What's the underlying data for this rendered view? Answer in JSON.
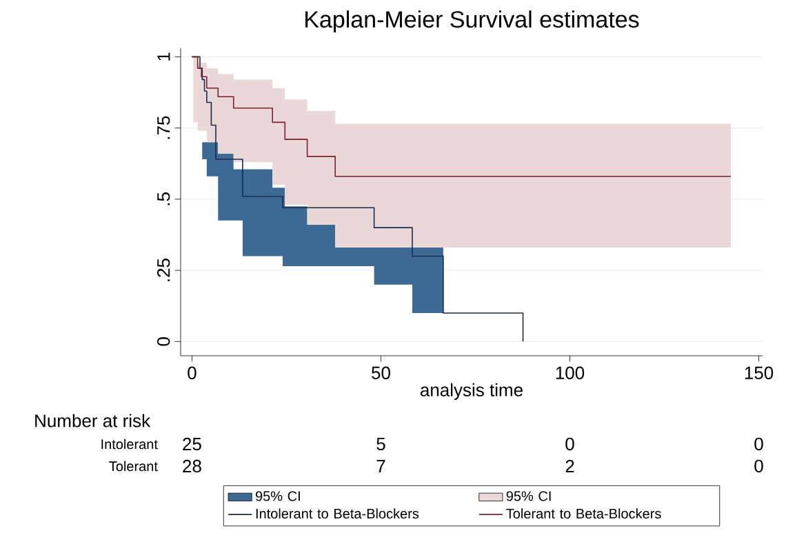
{
  "chart_data": {
    "type": "step",
    "title": "Kaplan-Meier Survival estimates",
    "xlabel": "analysis time",
    "series": [
      {
        "name": "95% CI",
        "type": "area",
        "color": "#3d6a95",
        "x": [
          2.7,
          3.9,
          6.9,
          11,
          13.4,
          21.3,
          24,
          24.6,
          30.5,
          37.9,
          48.2,
          58.3,
          66.5
        ],
        "values": [
          null,
          null,
          null,
          null,
          null,
          null,
          null,
          null,
          null,
          null,
          null,
          null,
          null
        ],
        "upper": [
          0.7,
          0.7,
          0.66,
          0.605,
          0.605,
          0.54,
          0.54,
          0.475,
          0.41,
          0.33,
          0.33,
          0.33,
          0.33
        ],
        "lower": [
          0.64,
          0.58,
          0.425,
          0.425,
          0.3,
          0.3,
          0.265,
          0.265,
          0.265,
          0.265,
          0.2,
          0.1,
          0.1
        ]
      },
      {
        "name": "95% CI",
        "type": "area",
        "color": "#ead8d8",
        "x": [
          0.35,
          1.5,
          3.9,
          6.9,
          11,
          21.3,
          24.6,
          30.5,
          37.9,
          142.6
        ],
        "values": [
          null,
          null,
          null,
          null,
          null,
          null,
          null,
          null,
          null,
          null
        ],
        "upper": [
          1,
          0.98,
          0.96,
          0.94,
          0.92,
          0.89,
          0.85,
          0.81,
          0.765,
          0.765
        ],
        "lower": [
          0.77,
          0.74,
          0.7,
          0.66,
          0.63,
          0.55,
          0.48,
          0.41,
          0.33,
          0.33
        ]
      },
      {
        "name": "Intolerant to Beta-Blockers",
        "type": "step",
        "color": "#1c2b4c",
        "x": [
          0,
          2.1,
          2.7,
          3.3,
          3.9,
          5.1,
          6.3,
          13.4,
          24,
          48.2,
          58.3,
          66.5,
          87.6
        ],
        "values": [
          1,
          0.96,
          0.92,
          0.88,
          0.84,
          0.76,
          0.64,
          0.51,
          0.47,
          0.4,
          0.3,
          0.1,
          0
        ]
      },
      {
        "name": "Tolerant to Beta-Blockers",
        "type": "step",
        "color": "#7a1f2e",
        "x": [
          0,
          1.5,
          2.5,
          3.9,
          6.9,
          11,
          21.3,
          24.6,
          30.5,
          37.9,
          142.6
        ],
        "values": [
          1,
          0.96,
          0.93,
          0.89,
          0.86,
          0.82,
          0.77,
          0.71,
          0.65,
          0.58,
          0.58
        ]
      }
    ],
    "xlim": [
      -3,
      151
    ],
    "ylim": [
      -0.05,
      1.03
    ],
    "xticks": [
      0,
      50,
      100,
      150
    ],
    "yticks": [
      0,
      {
        "value": 0.25,
        "label": ".25"
      },
      {
        "value": 0.5,
        "label": ".5"
      },
      {
        "value": 0.75,
        "label": ".75"
      },
      1
    ],
    "grid": "y",
    "legend": "bottom",
    "annotations": [
      "Number at risk",
      "Intolerant",
      "25",
      "5",
      "0",
      "0",
      "Tolerant",
      "28",
      "7",
      "2",
      "0"
    ]
  }
}
